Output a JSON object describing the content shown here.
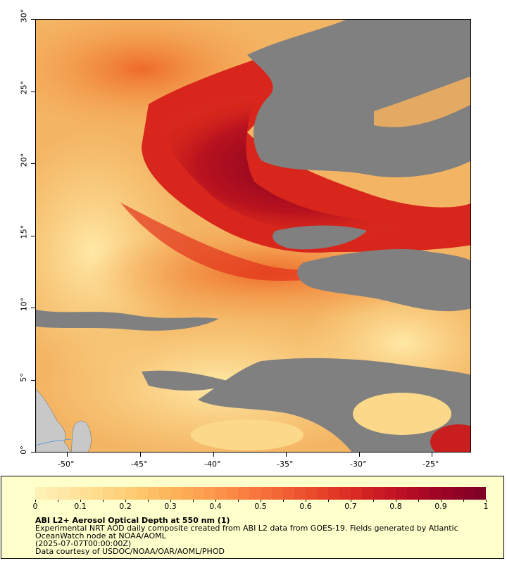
{
  "map": {
    "lat_labels": [
      "30°",
      "25°",
      "20°",
      "15°",
      "10°",
      "5°",
      "0°"
    ],
    "lon_labels": [
      "-50°",
      "-45°",
      "-40°",
      "-35°",
      "-30°",
      "-25°"
    ],
    "lat_range": [
      0,
      30
    ],
    "lon_range": [
      -52.2,
      -22.3
    ],
    "colors": {
      "no_data": "#808080",
      "land": "#c8c8c8",
      "low": "#ffe9a6",
      "mid": "#f7a24c",
      "high": "#e3331c",
      "max": "#7f0022"
    }
  },
  "legend": {
    "colorbar_ticks": [
      "0",
      "0.1",
      "0.2",
      "0.3",
      "0.4",
      "0.5",
      "0.6",
      "0.7",
      "0.8",
      "0.9",
      "1"
    ],
    "colorbar_range": [
      0,
      1
    ],
    "title": "ABI L2+ Aerosol Optical Depth at 550 nm (1)",
    "line1": "Experimental NRT AOD daily composite created from ABI L2 data from GOES-19. Fields generated by Atlantic",
    "line2": "OceanWatch node at NOAA/AOML",
    "line3": "(2025-07-07T00:00:00Z)",
    "line4": "Data courtesy of USDOC/NOAA/OAR/AOML/PHOD"
  }
}
